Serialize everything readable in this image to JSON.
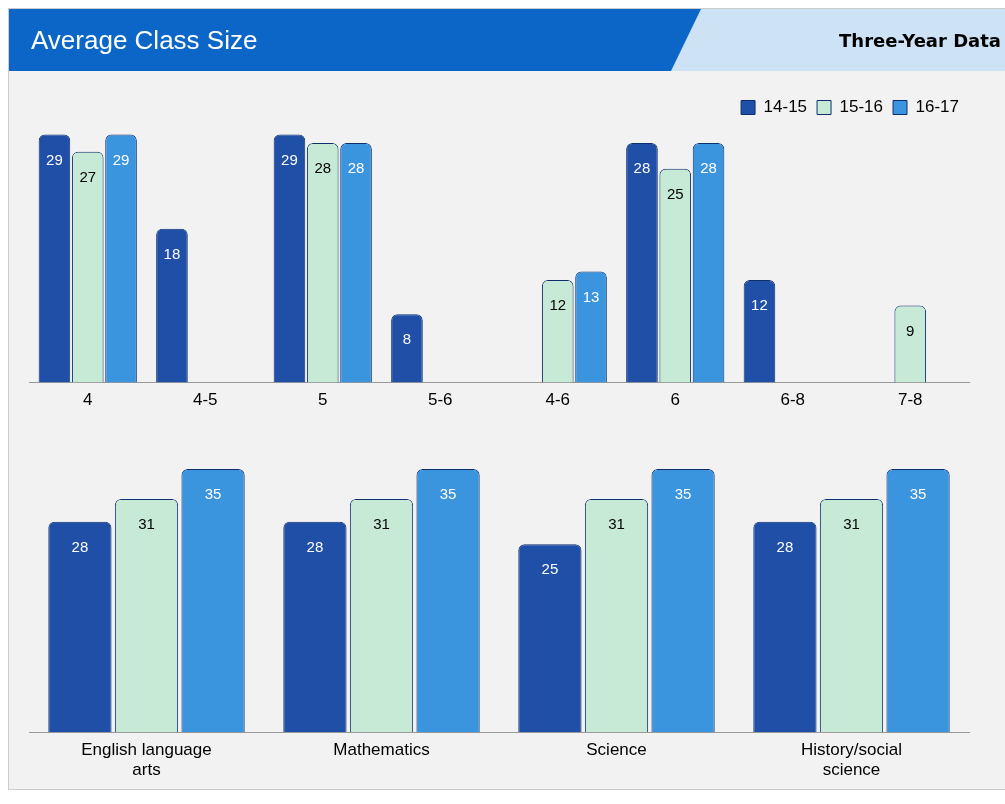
{
  "chart_data": [
    {
      "type": "bar",
      "title": "Average Class Size",
      "subtitle": "Three-Year Data",
      "categories": [
        "4",
        "4-5",
        "5",
        "5-6",
        "4-6",
        "6",
        "6-8",
        "7-8"
      ],
      "series": [
        {
          "name": "14-15",
          "color": "#1f4fa6",
          "values": [
            29,
            18,
            29,
            8,
            null,
            28,
            12,
            null
          ]
        },
        {
          "name": "15-16",
          "color": "#c6ead6",
          "values": [
            27,
            null,
            28,
            null,
            12,
            25,
            null,
            9
          ]
        },
        {
          "name": "16-17",
          "color": "#3b94de",
          "values": [
            29,
            null,
            28,
            null,
            13,
            28,
            null,
            null
          ]
        }
      ],
      "data_labels": true,
      "legend": "top right",
      "grid": false,
      "tick_labels": "x"
    },
    {
      "type": "bar",
      "categories": [
        "English language arts",
        "Mathematics",
        "Science",
        "History/social science"
      ],
      "series": [
        {
          "color": "#1f4fa6",
          "values": [
            28,
            28,
            25,
            28
          ]
        },
        {
          "color": "#c6ead6",
          "values": [
            31,
            31,
            31,
            31
          ]
        },
        {
          "color": "#3b94de",
          "values": [
            35,
            35,
            35,
            35
          ]
        }
      ],
      "data_labels": true,
      "grid": false,
      "tick_labels": "x"
    }
  ]
}
